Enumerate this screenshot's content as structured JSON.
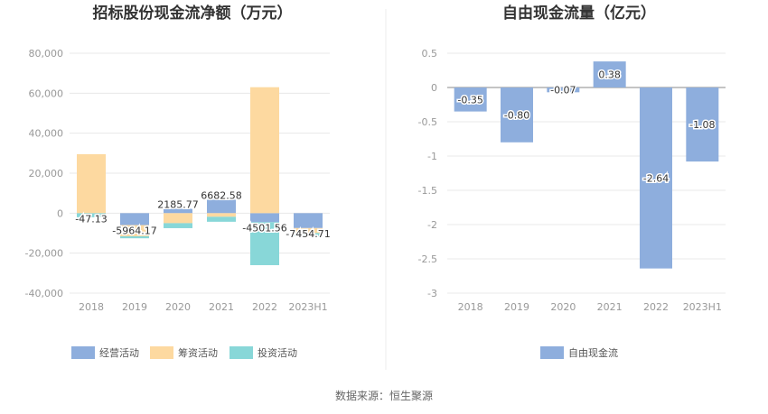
{
  "chart_data": [
    {
      "type": "bar",
      "stacked": true,
      "title": "招标股份现金流净额（万元）",
      "categories": [
        "2018",
        "2019",
        "2020",
        "2021",
        "2022",
        "2023H1"
      ],
      "ylim": [
        -40000,
        80000
      ],
      "yticks": [
        "80,000",
        "60,000",
        "40,000",
        "20,000",
        "0",
        "-20,000",
        "-40,000"
      ],
      "ytick_values": [
        80000,
        60000,
        40000,
        20000,
        0,
        -20000,
        -40000
      ],
      "series": [
        {
          "name": "经营活动",
          "color": "#8eaedd",
          "values": [
            -47.13,
            -5964.17,
            2185.77,
            6682.58,
            -4501.56,
            -7454.71
          ]
        },
        {
          "name": "筹资活动",
          "color": "#fdd9a0",
          "values": [
            29500,
            -5600,
            -5000,
            -1800,
            63000,
            -2500
          ]
        },
        {
          "name": "投资活动",
          "color": "#88d7d8",
          "values": [
            -2000,
            -1000,
            -2500,
            -2500,
            -21500,
            -1500
          ]
        }
      ],
      "data_labels": [
        "-47.13",
        "-5964.17",
        "2185.77",
        "6682.58",
        "-4501.56",
        "-7454.71"
      ],
      "legend": [
        "经营活动",
        "筹资活动",
        "投资活动"
      ]
    },
    {
      "type": "bar",
      "title": "自由现金流量（亿元）",
      "categories": [
        "2018",
        "2019",
        "2020",
        "2021",
        "2022",
        "2023H1"
      ],
      "ylim": [
        -3,
        0.5
      ],
      "yticks": [
        "0.5",
        "0",
        "-0.5",
        "-1",
        "-1.5",
        "-2",
        "-2.5",
        "-3"
      ],
      "ytick_values": [
        0.5,
        0,
        -0.5,
        -1,
        -1.5,
        -2,
        -2.5,
        -3
      ],
      "series": [
        {
          "name": "自由现金流",
          "color": "#8eaedd",
          "values": [
            -0.35,
            -0.8,
            -0.07,
            0.38,
            -2.64,
            -1.08
          ]
        }
      ],
      "data_labels": [
        "-0.35",
        "-0.80",
        "-0.07",
        "0.38",
        "-2.64",
        "-1.08"
      ],
      "legend": [
        "自由现金流"
      ]
    }
  ],
  "source": "数据来源：恒生聚源"
}
